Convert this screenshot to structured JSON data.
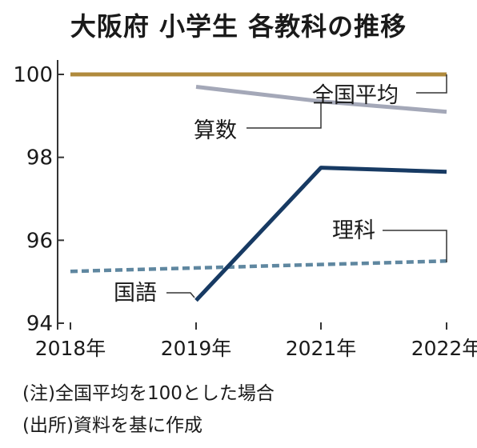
{
  "chart_data": {
    "type": "line",
    "title": "大阪府 小学生 各教科の推移",
    "categories": [
      "2018年",
      "2019年",
      "2021年",
      "2022年"
    ],
    "yticks": [
      "100",
      "98",
      "96",
      "94"
    ],
    "ylim": [
      94,
      100
    ],
    "xlabel": "",
    "ylabel": "",
    "grid": false,
    "series": [
      {
        "name": "全国平均",
        "values": [
          100,
          100,
          100,
          100
        ],
        "color": "#b08a3c",
        "style": "solid"
      },
      {
        "name": "算数",
        "values": [
          null,
          99.7,
          99.35,
          99.1
        ],
        "color": "#a4a8b8",
        "style": "solid"
      },
      {
        "name": "理科",
        "values": [
          95.25,
          null,
          null,
          95.5
        ],
        "color": "#5f87a0",
        "style": "dashed"
      },
      {
        "name": "国語",
        "values": [
          null,
          94.55,
          97.75,
          97.65
        ],
        "color": "#173a63",
        "style": "solid"
      }
    ]
  },
  "notes": [
    "(注)全国平均を100とした場合",
    "(出所)資料を基に作成"
  ]
}
